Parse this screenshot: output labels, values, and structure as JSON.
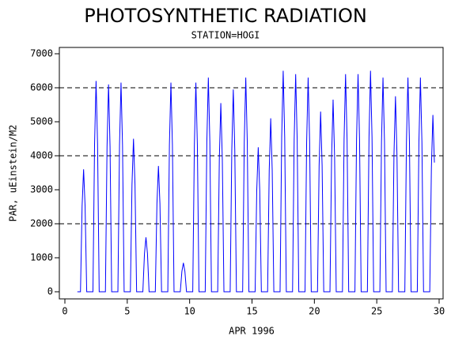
{
  "chart_data": {
    "type": "line",
    "title": "PHOTOSYNTHETIC RADIATION",
    "subtitle": "STATION=HOGI",
    "xlabel": "APR 1996",
    "ylabel": "PAR, uEinstein/M2",
    "color": "#0000ff",
    "xlim": [
      0,
      30
    ],
    "ylim": [
      0,
      7000
    ],
    "xticks": [
      0,
      5,
      10,
      15,
      20,
      25,
      30
    ],
    "yticks": [
      0,
      1000,
      2000,
      3000,
      4000,
      5000,
      6000,
      7000
    ],
    "hlines": [
      2000,
      4000,
      6000
    ],
    "x": [
      1.0,
      1.25,
      1.38,
      1.5,
      1.62,
      1.75,
      2.25,
      2.38,
      2.5,
      2.62,
      2.75,
      3.25,
      3.38,
      3.5,
      3.62,
      3.75,
      4.25,
      4.38,
      4.5,
      4.62,
      4.75,
      5.25,
      5.38,
      5.5,
      5.62,
      5.75,
      6.25,
      6.38,
      6.5,
      6.62,
      6.75,
      7.25,
      7.38,
      7.5,
      7.62,
      7.75,
      8.25,
      8.38,
      8.5,
      8.62,
      8.75,
      9.25,
      9.38,
      9.5,
      9.62,
      9.75,
      10.25,
      10.38,
      10.5,
      10.62,
      10.75,
      11.25,
      11.38,
      11.5,
      11.62,
      11.75,
      12.25,
      12.38,
      12.5,
      12.62,
      12.75,
      13.25,
      13.38,
      13.5,
      13.62,
      13.75,
      14.25,
      14.38,
      14.5,
      14.62,
      14.75,
      15.25,
      15.38,
      15.5,
      15.62,
      15.75,
      16.25,
      16.38,
      16.5,
      16.62,
      16.75,
      17.25,
      17.38,
      17.5,
      17.62,
      17.75,
      18.25,
      18.38,
      18.5,
      18.62,
      18.75,
      19.25,
      19.38,
      19.5,
      19.62,
      19.75,
      20.25,
      20.38,
      20.5,
      20.62,
      20.75,
      21.25,
      21.38,
      21.5,
      21.62,
      21.75,
      22.25,
      22.38,
      22.5,
      22.62,
      22.75,
      23.25,
      23.38,
      23.5,
      23.62,
      23.75,
      24.25,
      24.38,
      24.5,
      24.62,
      24.75,
      25.25,
      25.38,
      25.5,
      25.62,
      25.75,
      26.25,
      26.38,
      26.5,
      26.62,
      26.75,
      27.25,
      27.38,
      27.5,
      27.62,
      27.75,
      28.25,
      28.38,
      28.5,
      28.62,
      28.75,
      29.25,
      29.38,
      29.5,
      29.62
    ],
    "values": [
      0,
      0,
      2520,
      3600,
      2520,
      0,
      0,
      4340,
      6200,
      4340,
      0,
      0,
      4270,
      6100,
      4270,
      0,
      0,
      4310,
      6150,
      4310,
      0,
      0,
      3150,
      4500,
      3150,
      0,
      0,
      1120,
      1600,
      1120,
      0,
      0,
      2590,
      3700,
      2590,
      0,
      0,
      4310,
      6150,
      4310,
      0,
      0,
      600,
      850,
      600,
      0,
      0,
      4310,
      6150,
      4310,
      0,
      0,
      4410,
      6300,
      4410,
      0,
      0,
      3890,
      5550,
      3890,
      0,
      0,
      4170,
      5950,
      4170,
      0,
      0,
      4410,
      6300,
      4410,
      0,
      0,
      2980,
      4250,
      2980,
      0,
      0,
      3570,
      5100,
      3570,
      0,
      0,
      4550,
      6500,
      4550,
      0,
      0,
      4480,
      6400,
      4480,
      0,
      0,
      4410,
      6300,
      4410,
      0,
      0,
      3710,
      5300,
      3710,
      0,
      0,
      3960,
      5650,
      3960,
      0,
      0,
      4480,
      6400,
      4480,
      0,
      0,
      4480,
      6400,
      4480,
      0,
      0,
      4550,
      6500,
      4550,
      0,
      0,
      4410,
      6300,
      4410,
      0,
      0,
      4030,
      5750,
      4030,
      0,
      0,
      4410,
      6300,
      4410,
      0,
      0,
      4410,
      6300,
      4410,
      0,
      0,
      3640,
      5200,
      3800
    ]
  }
}
